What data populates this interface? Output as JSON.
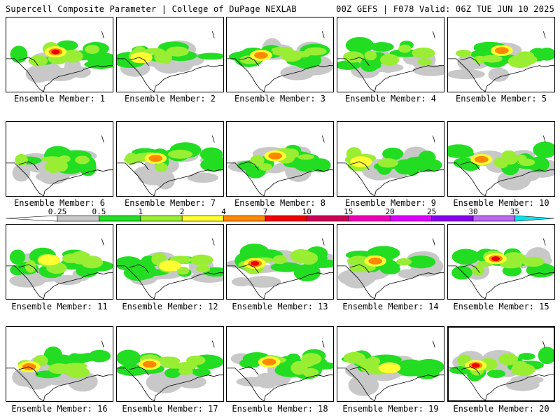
{
  "header": {
    "left": "Supercell Composite Parameter | College of DuPage NEXLAB",
    "right": "00Z GEFS | F078 Valid: 06Z TUE JUN 10 2025"
  },
  "colorbar": {
    "levels": [
      "0.25",
      "0.5",
      "1",
      "2",
      "4",
      "7",
      "10",
      "15",
      "20",
      "25",
      "30",
      "35"
    ],
    "colors": [
      "#c8c8c8",
      "#22dd22",
      "#99ee33",
      "#ffff33",
      "#ff8800",
      "#ee0000",
      "#cc0055",
      "#ee00bb",
      "#dd00ff",
      "#8800ee",
      "#bb66ee",
      "#00e6ee"
    ]
  },
  "members": [
    {
      "label": "Ensemble Member: 1",
      "intensity": 4
    },
    {
      "label": "Ensemble Member: 2",
      "intensity": 2
    },
    {
      "label": "Ensemble Member: 3",
      "intensity": 3
    },
    {
      "label": "Ensemble Member: 4",
      "intensity": 1
    },
    {
      "label": "Ensemble Member: 5",
      "intensity": 3
    },
    {
      "label": "Ensemble Member: 6",
      "intensity": 1
    },
    {
      "label": "Ensemble Member: 7",
      "intensity": 3
    },
    {
      "label": "Ensemble Member: 8",
      "intensity": 3
    },
    {
      "label": "Ensemble Member: 9",
      "intensity": 2
    },
    {
      "label": "Ensemble Member: 10",
      "intensity": 3
    },
    {
      "label": "Ensemble Member: 11",
      "intensity": 2
    },
    {
      "label": "Ensemble Member: 12",
      "intensity": 2
    },
    {
      "label": "Ensemble Member: 13",
      "intensity": 4
    },
    {
      "label": "Ensemble Member: 14",
      "intensity": 3
    },
    {
      "label": "Ensemble Member: 15",
      "intensity": 4
    },
    {
      "label": "Ensemble Member: 16",
      "intensity": 3
    },
    {
      "label": "Ensemble Member: 17",
      "intensity": 3
    },
    {
      "label": "Ensemble Member: 18",
      "intensity": 3
    },
    {
      "label": "Ensemble Member: 19",
      "intensity": 2
    },
    {
      "label": "Ensemble Member: 20",
      "intensity": 4,
      "highlighted": true
    }
  ]
}
